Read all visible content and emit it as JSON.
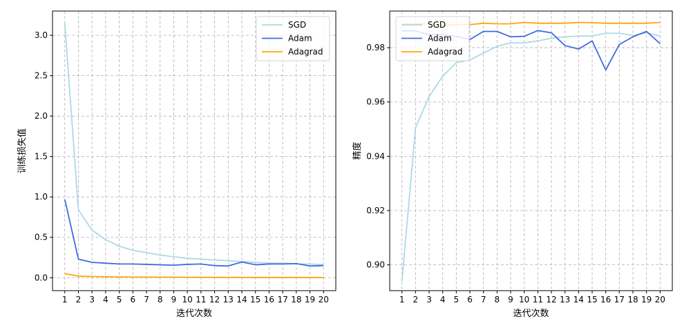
{
  "chart_data": [
    {
      "type": "line",
      "xlabel": "迭代次数",
      "ylabel": "训练损失值",
      "x": [
        1,
        2,
        3,
        4,
        5,
        6,
        7,
        8,
        9,
        10,
        11,
        12,
        13,
        14,
        15,
        16,
        17,
        18,
        19,
        20
      ],
      "xticks": [
        "1",
        "2",
        "3",
        "4",
        "5",
        "6",
        "7",
        "8",
        "9",
        "10",
        "11",
        "12",
        "13",
        "14",
        "15",
        "16",
        "17",
        "18",
        "19",
        "20"
      ],
      "ylim": [
        -0.16,
        3.3
      ],
      "yticks": [
        "0.0",
        "0.5",
        "1.0",
        "1.5",
        "2.0",
        "2.5",
        "3.0"
      ],
      "grid": true,
      "legend_position": "top-right",
      "series": [
        {
          "name": "SGD",
          "color": "#add8e6",
          "values": [
            3.15,
            0.84,
            0.59,
            0.47,
            0.39,
            0.34,
            0.31,
            0.28,
            0.26,
            0.24,
            0.23,
            0.22,
            0.21,
            0.2,
            0.19,
            0.18,
            0.18,
            0.17,
            0.17,
            0.16
          ]
        },
        {
          "name": "Adam",
          "color": "#4169e1",
          "values": [
            0.97,
            0.23,
            0.19,
            0.18,
            0.17,
            0.17,
            0.165,
            0.16,
            0.155,
            0.165,
            0.17,
            0.15,
            0.145,
            0.195,
            0.16,
            0.17,
            0.17,
            0.175,
            0.145,
            0.15
          ]
        },
        {
          "name": "Adagrad",
          "color": "#ffa500",
          "values": [
            0.05,
            0.02,
            0.015,
            0.012,
            0.01,
            0.008,
            0.007,
            0.006,
            0.006,
            0.005,
            0.005,
            0.004,
            0.004,
            0.004,
            0.003,
            0.003,
            0.003,
            0.003,
            0.002,
            0.002
          ]
        }
      ]
    },
    {
      "type": "line",
      "xlabel": "迭代次数",
      "ylabel": "精度",
      "x": [
        1,
        2,
        3,
        4,
        5,
        6,
        7,
        8,
        9,
        10,
        11,
        12,
        13,
        14,
        15,
        16,
        17,
        18,
        19,
        20
      ],
      "xticks": [
        "1",
        "2",
        "3",
        "4",
        "5",
        "6",
        "7",
        "8",
        "9",
        "10",
        "11",
        "12",
        "13",
        "14",
        "15",
        "16",
        "17",
        "18",
        "19",
        "20"
      ],
      "ylim": [
        0.8905,
        0.9935
      ],
      "yticks": [
        "0.90",
        "0.92",
        "0.94",
        "0.96",
        "0.98"
      ],
      "grid": true,
      "legend_position": "top-left",
      "series": [
        {
          "name": "SGD",
          "color": "#add8e6",
          "values": [
            0.894,
            0.9505,
            0.962,
            0.9695,
            0.9745,
            0.9755,
            0.978,
            0.9805,
            0.9818,
            0.9818,
            0.9825,
            0.9835,
            0.984,
            0.9843,
            0.9843,
            0.9853,
            0.9853,
            0.9845,
            0.9855,
            0.9843
          ]
        },
        {
          "name": "Adam",
          "color": "#4169e1",
          "values": [
            0.9862,
            0.9862,
            0.9848,
            0.9848,
            0.9842,
            0.983,
            0.986,
            0.986,
            0.984,
            0.9842,
            0.9863,
            0.9855,
            0.9808,
            0.9795,
            0.9825,
            0.9718,
            0.9812,
            0.984,
            0.986,
            0.9815
          ]
        },
        {
          "name": "Adagrad",
          "color": "#ffa500",
          "values": [
            0.9888,
            0.9888,
            0.9888,
            0.9883,
            0.9885,
            0.9885,
            0.989,
            0.9888,
            0.9888,
            0.9893,
            0.989,
            0.989,
            0.989,
            0.9893,
            0.9892,
            0.989,
            0.989,
            0.989,
            0.989,
            0.9893
          ]
        }
      ]
    }
  ]
}
